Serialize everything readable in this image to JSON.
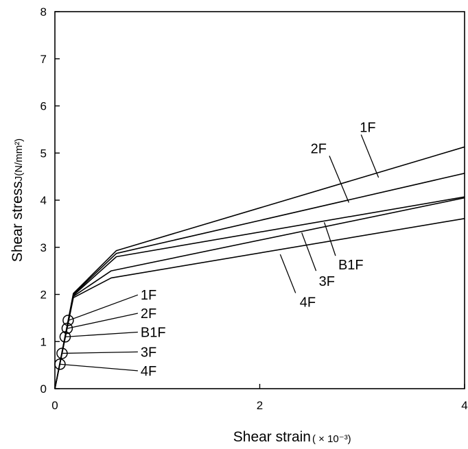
{
  "chart_data": {
    "type": "line",
    "xlabel": "Shear strain",
    "xlabel_unit": "( × 10⁻³)",
    "ylabel": "Shear stress",
    "ylabel_unit": "J(N/mm²)",
    "xlim": [
      0,
      4
    ],
    "ylim": [
      0,
      8
    ],
    "x_ticks": [
      "0",
      "2",
      "4"
    ],
    "y_ticks": [
      "0",
      "1",
      "2",
      "3",
      "4",
      "5",
      "6",
      "7",
      "8"
    ],
    "grid": false,
    "series": [
      {
        "name": "1F",
        "x": [
          0,
          0.18,
          0.6,
          4.0
        ],
        "y": [
          0,
          2.02,
          2.93,
          5.13
        ],
        "marker": {
          "x": 0.13,
          "y": 1.45
        }
      },
      {
        "name": "2F",
        "x": [
          0,
          0.18,
          0.6,
          4.0
        ],
        "y": [
          0,
          2.0,
          2.87,
          4.57
        ],
        "marker": {
          "x": 0.12,
          "y": 1.28
        }
      },
      {
        "name": "B1F",
        "x": [
          0,
          0.18,
          0.6,
          4.0
        ],
        "y": [
          0,
          1.98,
          2.8,
          4.07
        ],
        "marker": {
          "x": 0.1,
          "y": 1.1
        }
      },
      {
        "name": "3F",
        "x": [
          0,
          0.18,
          0.55,
          4.0
        ],
        "y": [
          0,
          1.96,
          2.5,
          4.05
        ],
        "marker": {
          "x": 0.07,
          "y": 0.75
        }
      },
      {
        "name": "4F",
        "x": [
          0,
          0.18,
          0.55,
          4.0
        ],
        "y": [
          0,
          1.93,
          2.35,
          3.61
        ],
        "marker": {
          "x": 0.05,
          "y": 0.52
        }
      }
    ],
    "annotations": [
      {
        "text": "1F",
        "tip": [
          0.81,
          1.99
        ],
        "anchor": [
          0.135,
          1.45
        ]
      },
      {
        "text": "2F",
        "tip": [
          0.81,
          1.6
        ],
        "anchor": [
          0.125,
          1.28
        ]
      },
      {
        "text": "B1F",
        "tip": [
          0.81,
          1.2
        ],
        "anchor": [
          0.105,
          1.1
        ]
      },
      {
        "text": "3F",
        "tip": [
          0.81,
          0.78
        ],
        "anchor": [
          0.075,
          0.75
        ]
      },
      {
        "text": "4F",
        "tip": [
          0.81,
          0.38
        ],
        "anchor": [
          0.045,
          0.52
        ]
      },
      {
        "text": "1F",
        "tip": [
          2.99,
          5.39
        ],
        "anchor": [
          3.16,
          4.48
        ]
      },
      {
        "text": "2F",
        "tip": [
          2.68,
          4.94
        ],
        "anchor": [
          2.87,
          3.95
        ]
      },
      {
        "text": "B1F",
        "tip": [
          2.74,
          2.82
        ],
        "anchor": [
          2.63,
          3.53
        ]
      },
      {
        "text": "3F",
        "tip": [
          2.55,
          2.5
        ],
        "anchor": [
          2.41,
          3.31
        ]
      },
      {
        "text": "4F",
        "tip": [
          2.35,
          2.03
        ],
        "anchor": [
          2.2,
          2.85
        ]
      }
    ]
  }
}
